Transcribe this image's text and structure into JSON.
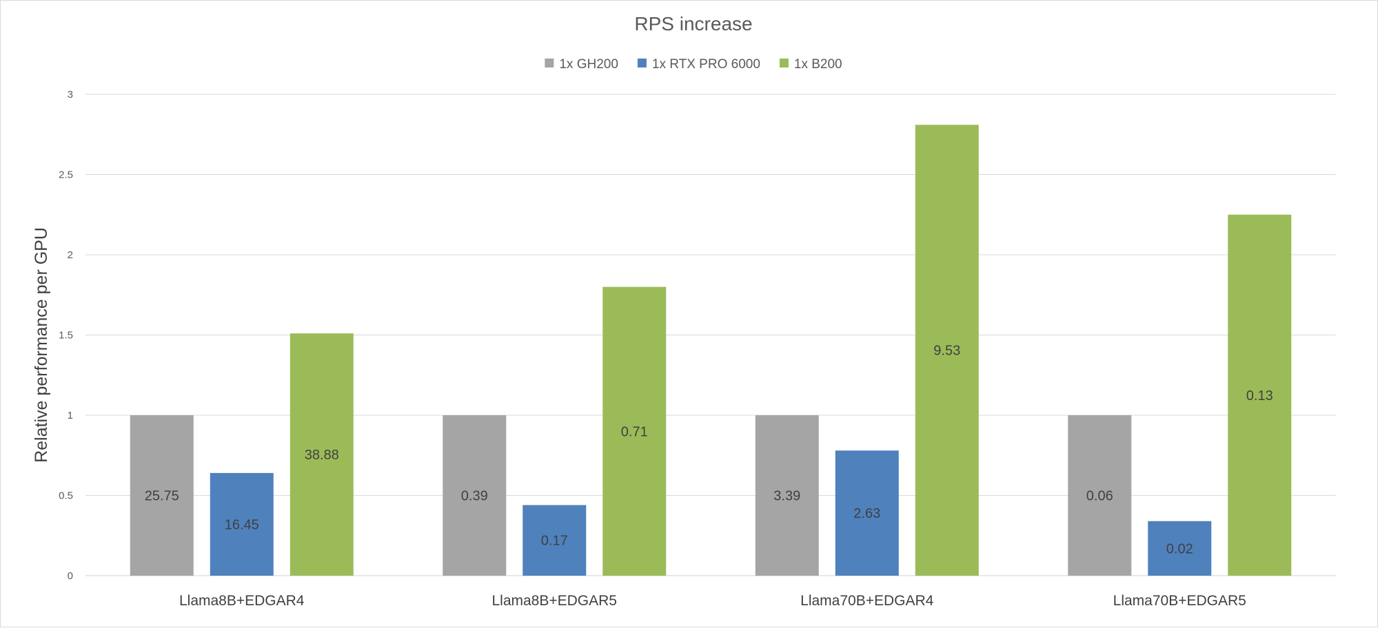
{
  "chart_data": {
    "type": "bar",
    "title": "RPS increase",
    "xlabel": "",
    "ylabel": "Relative performance per GPU",
    "categories": [
      "Llama8B+EDGAR4",
      "Llama8B+EDGAR5",
      "Llama70B+EDGAR4",
      "Llama70B+EDGAR5"
    ],
    "series": [
      {
        "name": "1x GH200",
        "color": "#a5a5a5",
        "values": [
          1,
          1,
          1,
          1
        ],
        "labels": [
          "25.75",
          "0.39",
          "3.39",
          "0.06"
        ]
      },
      {
        "name": "1x RTX PRO 6000",
        "color": "#4f81bd",
        "values": [
          0.64,
          0.44,
          0.78,
          0.34
        ],
        "labels": [
          "16.45",
          "0.17",
          "2.63",
          "0.02"
        ]
      },
      {
        "name": "1x B200",
        "color": "#9bbb59",
        "values": [
          1.51,
          1.8,
          2.81,
          2.25
        ],
        "labels": [
          "38.88",
          "0.71",
          "9.53",
          "0.13"
        ]
      }
    ],
    "ylim": [
      0,
      3
    ],
    "yticks": [
      0,
      0.5,
      1,
      1.5,
      2,
      2.5,
      3
    ],
    "grid": true,
    "legend_position": "top-center"
  }
}
